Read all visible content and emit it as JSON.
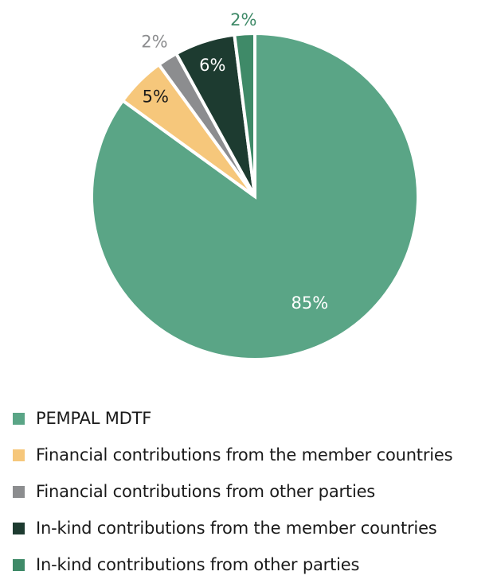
{
  "chart_data": {
    "type": "pie",
    "title": "",
    "start_angle": "12 o'clock",
    "direction": "clockwise",
    "legend_position": "bottom",
    "slices": [
      {
        "name": "PEMPAL MDTF",
        "value": 85,
        "label": "85%",
        "color": "#5aa586",
        "label_color": "#ffffff"
      },
      {
        "name": "Financial contributions from the member countries",
        "value": 5,
        "label": "5%",
        "color": "#f6c77b",
        "label_color": "#1a1a1a"
      },
      {
        "name": "Financial contributions from other parties",
        "value": 2,
        "label": "2%",
        "color": "#8c8d8f",
        "label_color": "#8c8d8f"
      },
      {
        "name": "In-kind contributions from the member countries",
        "value": 6,
        "label": "6%",
        "color": "#1d3b30",
        "label_color": "#ffffff"
      },
      {
        "name": "In-kind contributions from other parties",
        "value": 2,
        "label": "2%",
        "color": "#3f8a68",
        "label_color": "#3f8a68"
      }
    ]
  }
}
